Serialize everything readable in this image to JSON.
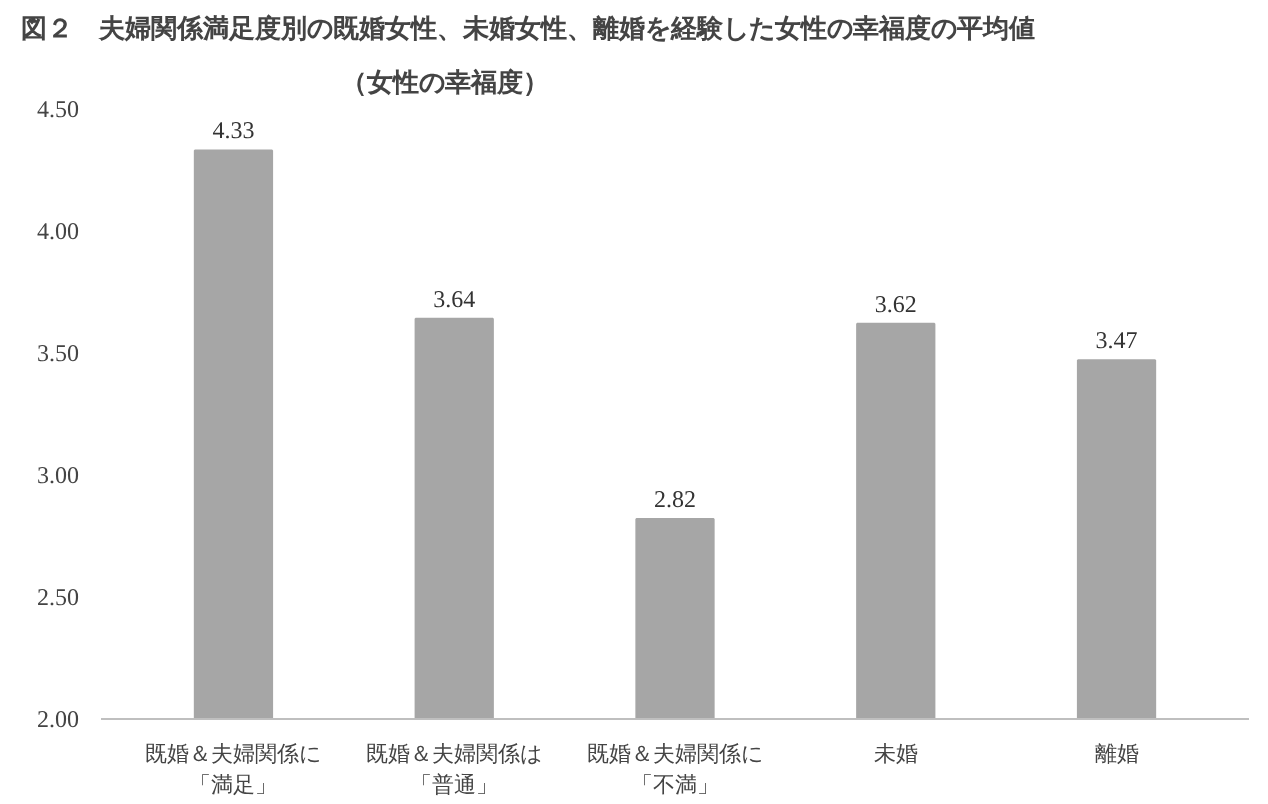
{
  "chart_data": {
    "type": "bar",
    "title": "図２　夫婦関係満足度別の既婚女性、未婚女性、離婚を経験した女性の幸福度の平均値",
    "subtitle": "（女性の幸福度）",
    "categories": [
      "既婚＆夫婦関係に「満足」",
      "既婚＆夫婦関係は「普通」",
      "既婚＆夫婦関係に「不満」",
      "未婚",
      "離婚"
    ],
    "values": [
      4.33,
      3.64,
      2.82,
      3.62,
      3.47
    ],
    "value_labels": [
      "4.33",
      "3.64",
      "2.82",
      "3.62",
      "3.47"
    ],
    "color": "#a6a6a6",
    "ylim": [
      2,
      4.5
    ],
    "yticks": [
      {
        "value": 2,
        "label": "2.00"
      },
      {
        "value": 2.5,
        "label": "2.50"
      },
      {
        "value": 3,
        "label": "3.00"
      },
      {
        "value": 3.5,
        "label": "3.50"
      },
      {
        "value": 4,
        "label": "4.00"
      },
      {
        "value": 4.5,
        "label": "4.50"
      }
    ],
    "grid": false
  }
}
